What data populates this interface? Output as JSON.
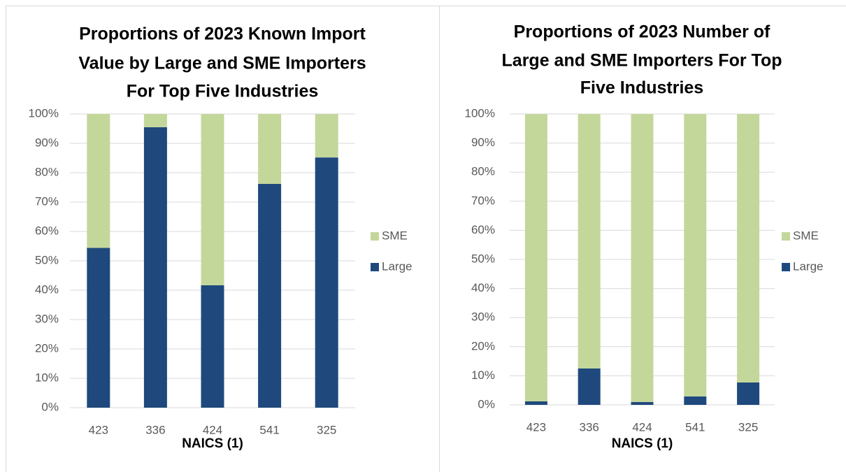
{
  "chart_data": [
    {
      "type": "stacked_bar",
      "title": [
        "Proportions of 2023 Known Import",
        "Value by Large and SME Importers",
        "For Top Five Industries"
      ],
      "x_label": "NAICS (1)",
      "categories": [
        "423",
        "336",
        "424",
        "541",
        "325"
      ],
      "series": [
        {
          "name": "Large",
          "color": "#1f497d",
          "values": [
            54.4,
            95.5,
            41.7,
            76.2,
            85.2
          ]
        },
        {
          "name": "SME",
          "color": "#c4d79b",
          "values": [
            45.6,
            4.5,
            58.3,
            23.8,
            14.8
          ]
        }
      ],
      "ylim": [
        0,
        100
      ],
      "yticks": [
        {
          "value": 0,
          "label": "0%"
        },
        {
          "value": 10,
          "label": "10%"
        },
        {
          "value": 20,
          "label": "20%"
        },
        {
          "value": 30,
          "label": "30%"
        },
        {
          "value": 40,
          "label": "40%"
        },
        {
          "value": 50,
          "label": "50%"
        },
        {
          "value": 60,
          "label": "60%"
        },
        {
          "value": 70,
          "label": "70%"
        },
        {
          "value": 80,
          "label": "80%"
        },
        {
          "value": 90,
          "label": "90%"
        },
        {
          "value": 100,
          "label": "100%"
        }
      ],
      "grid": true,
      "legend": "right"
    },
    {
      "type": "stacked_bar",
      "title": [
        "Proportions of 2023 Number of",
        "Large and SME Importers For Top",
        "Five Industries"
      ],
      "x_label": "NAICS (1)",
      "categories": [
        "423",
        "336",
        "424",
        "541",
        "325"
      ],
      "series": [
        {
          "name": "Large",
          "color": "#1f497d",
          "values": [
            1.2,
            12.5,
            1.0,
            2.9,
            7.7
          ]
        },
        {
          "name": "SME",
          "color": "#c4d79b",
          "values": [
            98.8,
            87.5,
            99.0,
            97.1,
            92.3
          ]
        }
      ],
      "ylim": [
        0,
        100
      ],
      "yticks": [
        {
          "value": 0,
          "label": "0%"
        },
        {
          "value": 10,
          "label": "10%"
        },
        {
          "value": 20,
          "label": "20%"
        },
        {
          "value": 30,
          "label": "30%"
        },
        {
          "value": 40,
          "label": "40%"
        },
        {
          "value": 50,
          "label": "50%"
        },
        {
          "value": 60,
          "label": "60%"
        },
        {
          "value": 70,
          "label": "70%"
        },
        {
          "value": 80,
          "label": "80%"
        },
        {
          "value": 90,
          "label": "90%"
        },
        {
          "value": 100,
          "label": "100%"
        }
      ],
      "grid": true,
      "legend": "right"
    }
  ]
}
